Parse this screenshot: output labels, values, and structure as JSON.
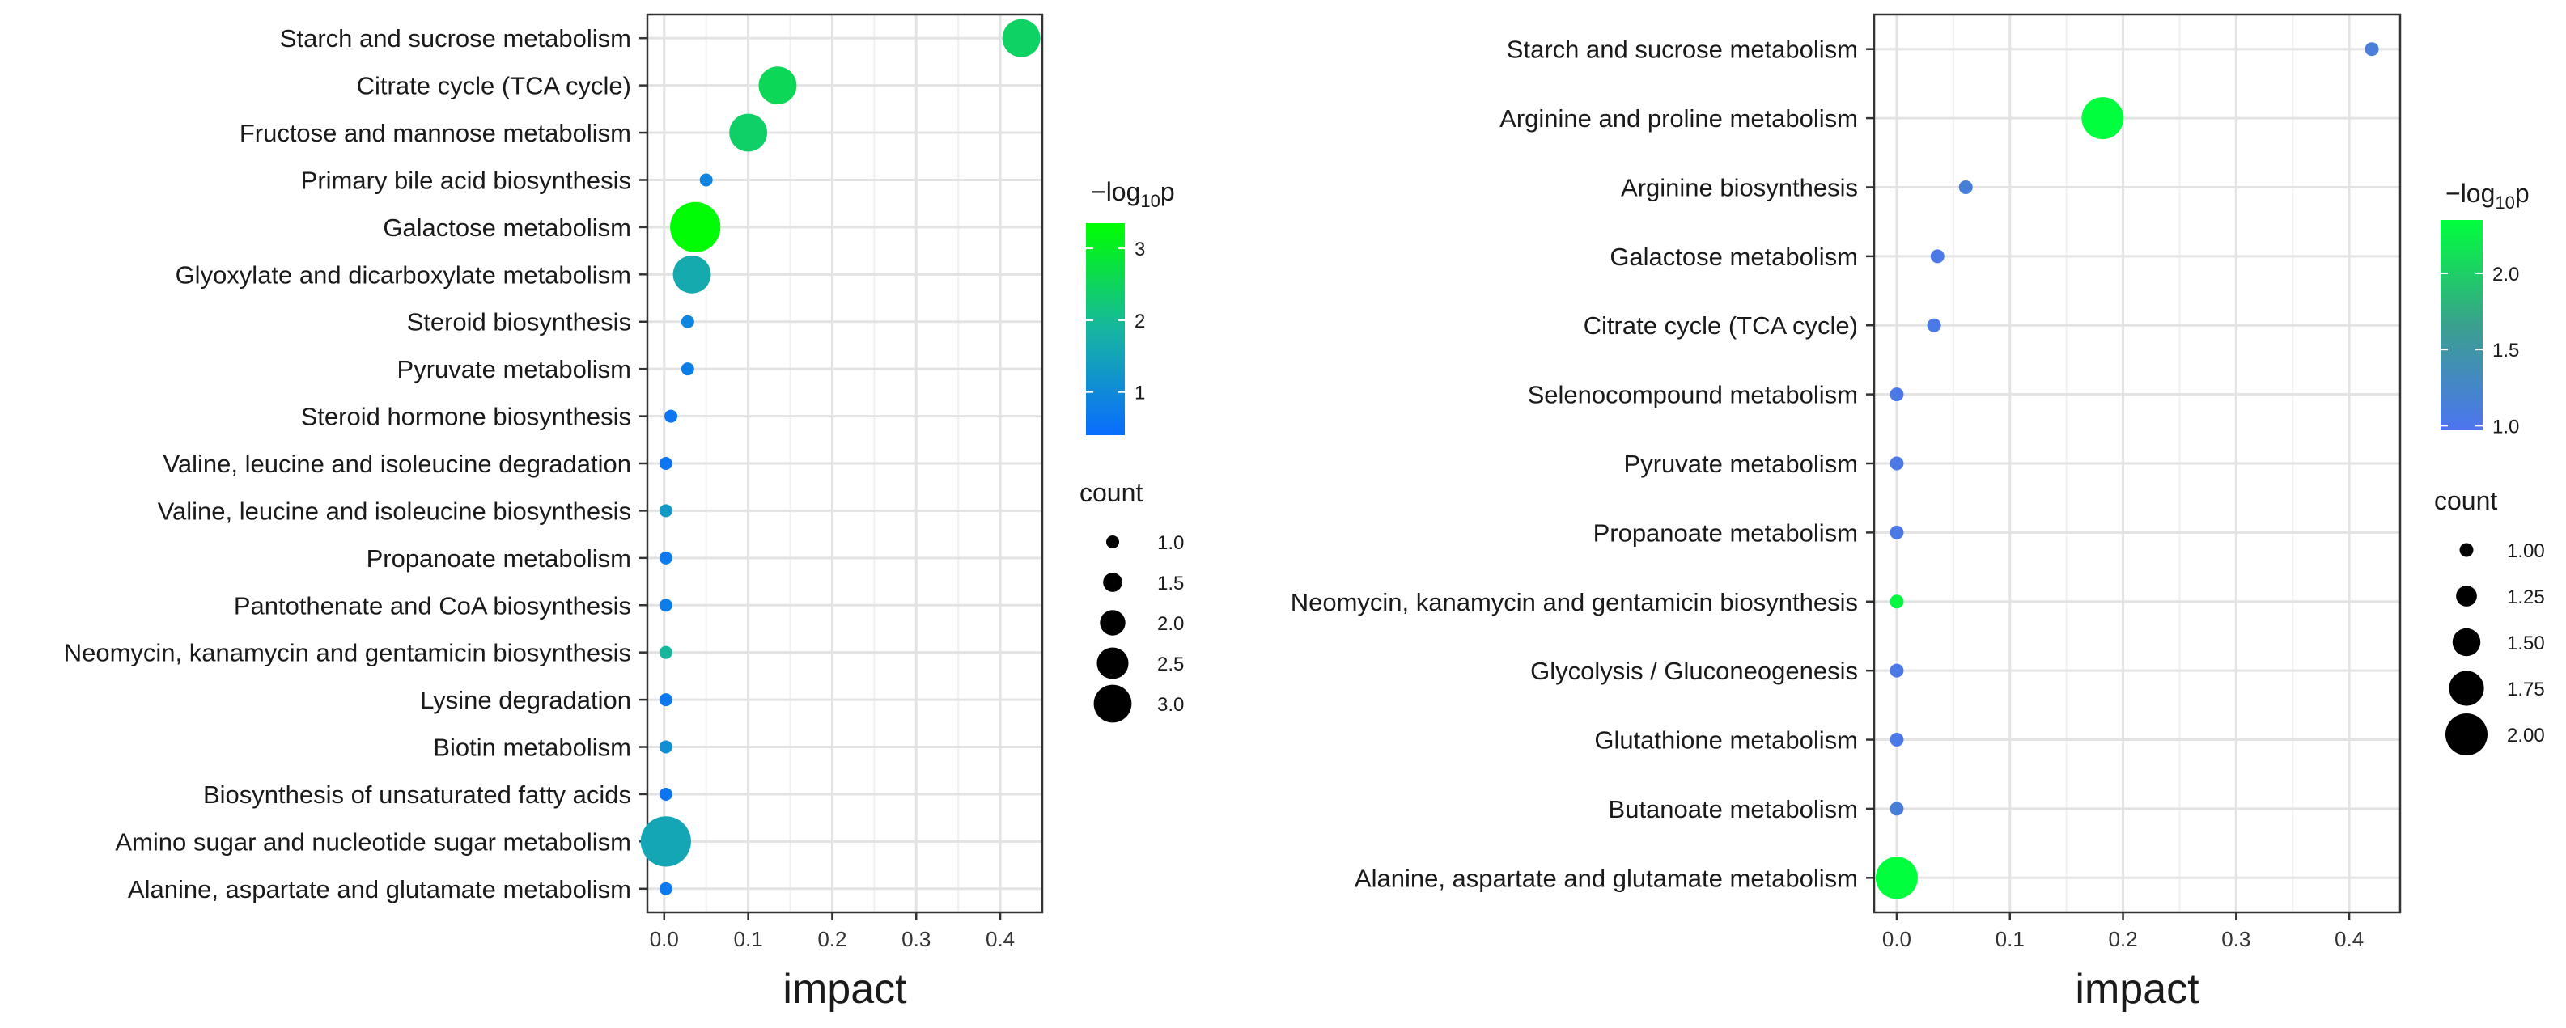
{
  "chart_data": [
    {
      "type": "scatter",
      "xlabel": "impact",
      "xlim": [
        -0.02,
        0.45
      ],
      "xticks": [
        0.0,
        0.1,
        0.2,
        0.3,
        0.4
      ],
      "xtick_labels": [
        "0.0",
        "0.1",
        "0.2",
        "0.3",
        "0.4"
      ],
      "categories": [
        "Starch and sucrose metabolism",
        "Citrate cycle (TCA cycle)",
        "Fructose and mannose metabolism",
        "Primary bile acid biosynthesis",
        "Galactose metabolism",
        "Glyoxylate and dicarboxylate metabolism",
        "Steroid biosynthesis",
        "Pyruvate metabolism",
        "Steroid hormone biosynthesis",
        "Valine, leucine and isoleucine degradation",
        "Valine, leucine and isoleucine biosynthesis",
        "Propanoate metabolism",
        "Pantothenate and CoA biosynthesis",
        "Neomycin, kanamycin and gentamicin biosynthesis",
        "Lysine degradation",
        "Biotin metabolism",
        "Biosynthesis of unsaturated fatty acids",
        "Amino sugar and nucleotide sugar metabolism",
        "Alanine, aspartate and glutamate metabolism"
      ],
      "impact": [
        0.425,
        0.135,
        0.1,
        0.05,
        0.037,
        0.033,
        0.028,
        0.028,
        0.008,
        0.002,
        0.002,
        0.002,
        0.002,
        0.002,
        0.002,
        0.002,
        0.002,
        0.002,
        0.002
      ],
      "neg_log10_p": [
        2.45,
        2.55,
        2.4,
        0.9,
        3.3,
        1.65,
        0.9,
        0.75,
        0.6,
        0.6,
        1.3,
        0.65,
        0.75,
        1.9,
        0.65,
        1.1,
        0.6,
        1.55,
        0.65
      ],
      "count": [
        3,
        3,
        3,
        1,
        4,
        3,
        1,
        1,
        1,
        1,
        1,
        1,
        1,
        1,
        1,
        1,
        1,
        4,
        1
      ],
      "color_legend": {
        "title": "−log",
        "subscript": "10",
        "suffix": "p",
        "range": [
          0.4,
          3.35
        ],
        "ticks": [
          1,
          2,
          3
        ],
        "tick_labels": [
          "1",
          "2",
          "3"
        ],
        "low_color": "#0a6cff",
        "mid_color": "#17b6a0",
        "high_color": "#00ff00"
      },
      "size_legend": {
        "title": "count",
        "values": [
          1.0,
          1.5,
          2.0,
          2.5,
          3.0
        ],
        "labels": [
          "1.0",
          "1.5",
          "2.0",
          "2.5",
          "3.0"
        ]
      }
    },
    {
      "type": "scatter",
      "xlabel": "impact",
      "xlim": [
        -0.02,
        0.445
      ],
      "xticks": [
        0.0,
        0.1,
        0.2,
        0.3,
        0.4
      ],
      "xtick_labels": [
        "0.0",
        "0.1",
        "0.2",
        "0.3",
        "0.4"
      ],
      "categories": [
        "Starch and sucrose metabolism",
        "Arginine and proline metabolism",
        "Arginine biosynthesis",
        "Galactose metabolism",
        "Citrate cycle (TCA cycle)",
        "Selenocompound metabolism",
        "Pyruvate metabolism",
        "Propanoate metabolism",
        "Neomycin, kanamycin and gentamicin biosynthesis",
        "Glycolysis / Gluconeogenesis",
        "Glutathione metabolism",
        "Butanoate metabolism",
        "Alanine, aspartate and glutamate metabolism"
      ],
      "impact": [
        0.42,
        0.182,
        0.061,
        0.036,
        0.033,
        0.0,
        0.0,
        0.0,
        0.0,
        0.0,
        0.0,
        0.0,
        0.0
      ],
      "neg_log10_p": [
        1.12,
        2.35,
        1.15,
        1.05,
        1.05,
        1.05,
        1.05,
        1.05,
        2.3,
        1.05,
        1.05,
        1.15,
        2.35
      ],
      "count": [
        1,
        2,
        1,
        1,
        1,
        1,
        1,
        1,
        1,
        1,
        1,
        1,
        2
      ],
      "color_legend": {
        "title": "−log",
        "subscript": "10",
        "suffix": "p",
        "range": [
          0.97,
          2.35
        ],
        "ticks": [
          1.0,
          1.5,
          2.0
        ],
        "tick_labels": [
          "1.0",
          "1.5",
          "2.0"
        ],
        "low_color": "#4d74f0",
        "mid_color": "#3aa08e",
        "high_color": "#00ff3c"
      },
      "size_legend": {
        "title": "count",
        "values": [
          1.0,
          1.25,
          1.5,
          1.75,
          2.0
        ],
        "labels": [
          "1.00",
          "1.25",
          "1.50",
          "1.75",
          "2.00"
        ]
      }
    }
  ]
}
